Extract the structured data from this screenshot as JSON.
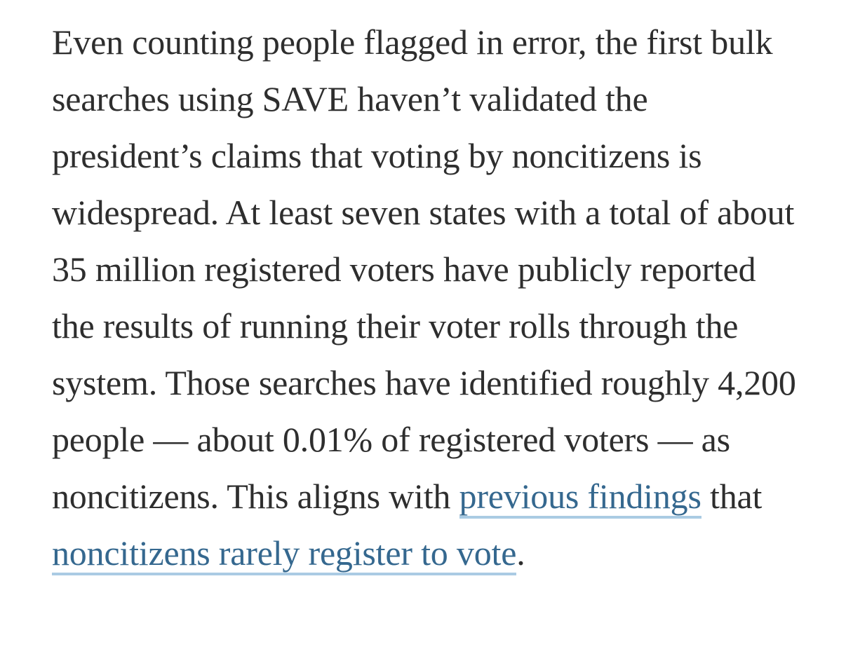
{
  "article": {
    "paragraph": {
      "segment_before_link1": "Even counting people flagged in error, the first bulk searches using SAVE haven’t validated the president’s claims that voting by noncitizens is widespread. At least seven states with a total of about 35 million registered voters have publicly reported the results of running their voter rolls through the system. Those searches have identified roughly 4,200 people — about 0.01% of registered voters — as noncitizens. This aligns with ",
      "link1_text": "previous findings",
      "segment_between_links": " that ",
      "link2_text": "noncitizens rarely register to vote",
      "segment_after_link2": "."
    },
    "colors": {
      "body_text": "#2e2e2e",
      "link_text": "#35688f",
      "link_underline": "#aacbe3",
      "background": "#ffffff"
    }
  }
}
